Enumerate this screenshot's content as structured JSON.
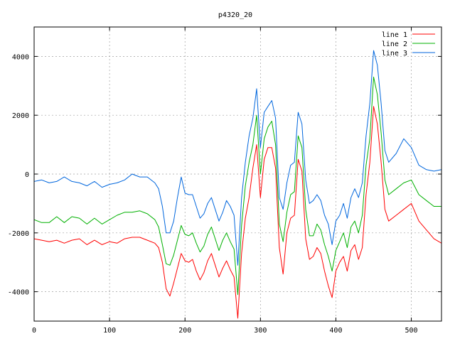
{
  "chart_data": {
    "type": "line",
    "title": "p4320_20",
    "xlabel": "",
    "ylabel": "",
    "xlim": [
      0,
      540
    ],
    "ylim": [
      -5000,
      5000
    ],
    "xticks": [
      0,
      100,
      200,
      300,
      400,
      500
    ],
    "yticks": [
      -4000,
      -2000,
      0,
      2000,
      4000
    ],
    "grid": true,
    "legend_position": "top-right",
    "series": [
      {
        "name": "line 1",
        "color": "#ff0000",
        "x": [
          0,
          10,
          20,
          30,
          40,
          50,
          60,
          70,
          80,
          90,
          100,
          110,
          120,
          130,
          140,
          150,
          160,
          165,
          170,
          175,
          180,
          185,
          190,
          195,
          200,
          205,
          210,
          215,
          220,
          225,
          230,
          235,
          240,
          245,
          250,
          255,
          260,
          265,
          270,
          275,
          280,
          285,
          290,
          295,
          300,
          305,
          310,
          315,
          320,
          325,
          330,
          335,
          340,
          345,
          350,
          355,
          360,
          365,
          370,
          375,
          380,
          385,
          390,
          395,
          400,
          405,
          410,
          415,
          420,
          425,
          430,
          435,
          440,
          445,
          450,
          455,
          460,
          465,
          470,
          480,
          490,
          500,
          510,
          520,
          530,
          540
        ],
        "y": [
          -2200,
          -2250,
          -2300,
          -2250,
          -2350,
          -2250,
          -2200,
          -2400,
          -2250,
          -2400,
          -2300,
          -2350,
          -2200,
          -2150,
          -2150,
          -2250,
          -2350,
          -2500,
          -3000,
          -3900,
          -4150,
          -3700,
          -3200,
          -2700,
          -2950,
          -3000,
          -2900,
          -3300,
          -3600,
          -3350,
          -2950,
          -2700,
          -3100,
          -3500,
          -3200,
          -2950,
          -3250,
          -3500,
          -4900,
          -2700,
          -1500,
          -800,
          200,
          1000,
          -800,
          500,
          900,
          900,
          200,
          -2500,
          -3400,
          -2000,
          -1500,
          -1400,
          500,
          100,
          -2200,
          -2900,
          -2800,
          -2500,
          -2700,
          -3300,
          -3800,
          -4200,
          -3300,
          -3000,
          -2800,
          -3300,
          -2600,
          -2400,
          -2900,
          -2500,
          -700,
          400,
          2300,
          1700,
          400,
          -1200,
          -1600,
          -1400,
          -1200,
          -1000,
          -1600,
          -1900,
          -2200,
          -2350
        ]
      },
      {
        "name": "line 2",
        "color": "#00b000",
        "x": [
          0,
          10,
          20,
          30,
          40,
          50,
          60,
          70,
          80,
          90,
          100,
          110,
          120,
          130,
          140,
          150,
          160,
          165,
          170,
          175,
          180,
          185,
          190,
          195,
          200,
          205,
          210,
          215,
          220,
          225,
          230,
          235,
          240,
          245,
          250,
          255,
          260,
          265,
          270,
          275,
          280,
          285,
          290,
          295,
          300,
          305,
          310,
          315,
          320,
          325,
          330,
          335,
          340,
          345,
          350,
          355,
          360,
          365,
          370,
          375,
          380,
          385,
          390,
          395,
          400,
          405,
          410,
          415,
          420,
          425,
          430,
          435,
          440,
          445,
          450,
          455,
          460,
          465,
          470,
          480,
          490,
          500,
          510,
          520,
          530,
          540
        ],
        "y": [
          -1550,
          -1650,
          -1650,
          -1450,
          -1650,
          -1450,
          -1500,
          -1700,
          -1500,
          -1700,
          -1550,
          -1400,
          -1300,
          -1300,
          -1250,
          -1350,
          -1550,
          -1800,
          -2400,
          -3050,
          -3100,
          -2750,
          -2250,
          -1750,
          -2050,
          -2100,
          -2000,
          -2350,
          -2650,
          -2450,
          -2050,
          -1800,
          -2200,
          -2600,
          -2250,
          -2000,
          -2300,
          -2550,
          -4100,
          -1750,
          -400,
          400,
          1000,
          2000,
          0,
          1200,
          1600,
          1800,
          1000,
          -1700,
          -2300,
          -1300,
          -700,
          -600,
          1300,
          900,
          -1200,
          -2100,
          -2100,
          -1700,
          -1900,
          -2400,
          -2800,
          -3300,
          -2600,
          -2300,
          -2000,
          -2500,
          -1800,
          -1600,
          -2000,
          -1400,
          300,
          1200,
          3300,
          2700,
          1400,
          -200,
          -700,
          -500,
          -300,
          -200,
          -700,
          -900,
          -1100,
          -1100
        ]
      },
      {
        "name": "line 3",
        "color": "#0066dd",
        "x": [
          0,
          10,
          20,
          30,
          40,
          50,
          60,
          70,
          80,
          90,
          100,
          110,
          120,
          130,
          140,
          150,
          160,
          165,
          170,
          175,
          180,
          185,
          190,
          195,
          200,
          205,
          210,
          215,
          220,
          225,
          230,
          235,
          240,
          245,
          250,
          255,
          260,
          265,
          270,
          275,
          280,
          285,
          290,
          295,
          300,
          305,
          310,
          315,
          320,
          325,
          330,
          335,
          340,
          345,
          350,
          355,
          360,
          365,
          370,
          375,
          380,
          385,
          390,
          395,
          400,
          405,
          410,
          415,
          420,
          425,
          430,
          435,
          440,
          445,
          450,
          455,
          460,
          465,
          470,
          480,
          490,
          500,
          510,
          520,
          530,
          540
        ],
        "y": [
          -250,
          -200,
          -300,
          -250,
          -100,
          -250,
          -300,
          -400,
          -250,
          -450,
          -350,
          -300,
          -200,
          0,
          -100,
          -100,
          -300,
          -500,
          -1100,
          -2000,
          -2000,
          -1600,
          -800,
          -100,
          -650,
          -700,
          -700,
          -1100,
          -1500,
          -1350,
          -1000,
          -800,
          -1200,
          -1600,
          -1300,
          -900,
          -1100,
          -1400,
          -3100,
          -800,
          400,
          1300,
          1900,
          2900,
          900,
          2100,
          2300,
          2500,
          1900,
          -800,
          -1200,
          -300,
          300,
          400,
          2100,
          1700,
          -200,
          -1000,
          -900,
          -700,
          -900,
          -1400,
          -1700,
          -2400,
          -1600,
          -1400,
          -1000,
          -1500,
          -800,
          -500,
          -800,
          -300,
          1300,
          2400,
          4200,
          3700,
          2400,
          800,
          400,
          700,
          1200,
          900,
          300,
          150,
          100,
          150
        ]
      }
    ]
  }
}
